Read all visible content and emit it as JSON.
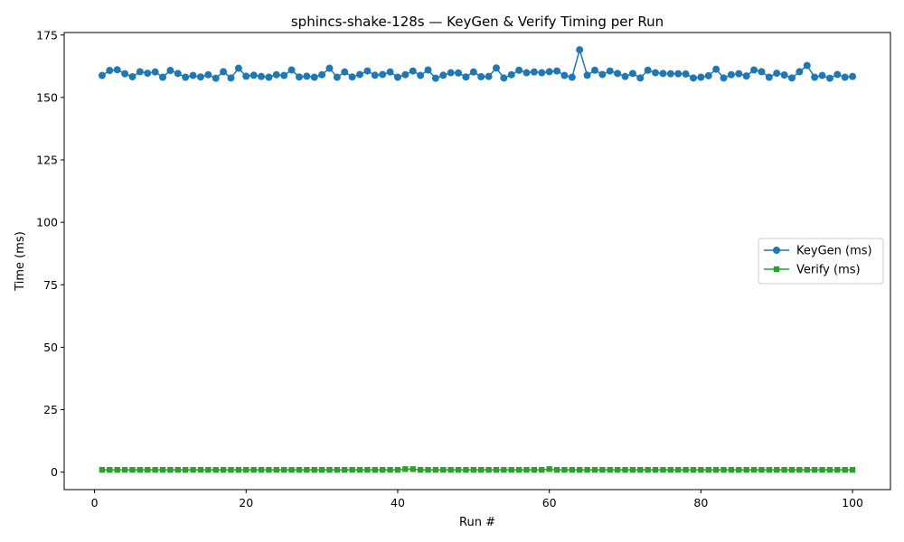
{
  "chart_data": {
    "type": "line",
    "title": "sphincs-shake-128s — KeyGen & Verify Timing per Run",
    "xlabel": "Run #",
    "ylabel": "Time (ms)",
    "xlim": [
      -4,
      105
    ],
    "ylim": [
      -7,
      176
    ],
    "xticks": [
      0,
      20,
      40,
      60,
      80,
      100
    ],
    "yticks": [
      0,
      25,
      50,
      75,
      100,
      125,
      150,
      175
    ],
    "grid": false,
    "legend_position": "center-right",
    "x": [
      1,
      2,
      3,
      4,
      5,
      6,
      7,
      8,
      9,
      10,
      11,
      12,
      13,
      14,
      15,
      16,
      17,
      18,
      19,
      20,
      21,
      22,
      23,
      24,
      25,
      26,
      27,
      28,
      29,
      30,
      31,
      32,
      33,
      34,
      35,
      36,
      37,
      38,
      39,
      40,
      41,
      42,
      43,
      44,
      45,
      46,
      47,
      48,
      49,
      50,
      51,
      52,
      53,
      54,
      55,
      56,
      57,
      58,
      59,
      60,
      61,
      62,
      63,
      64,
      65,
      66,
      67,
      68,
      69,
      70,
      71,
      72,
      73,
      74,
      75,
      76,
      77,
      78,
      79,
      80,
      81,
      82,
      83,
      84,
      85,
      86,
      87,
      88,
      89,
      90,
      91,
      92,
      93,
      94,
      95,
      96,
      97,
      98,
      99,
      100
    ],
    "series": [
      {
        "name": "KeyGen (ms)",
        "color": "#1f77b4",
        "marker": "circle",
        "values": [
          158.8,
          160.8,
          161.1,
          159.5,
          158.3,
          160.3,
          159.7,
          160.2,
          158.1,
          160.8,
          159.6,
          158.1,
          158.8,
          158.2,
          159.1,
          157.7,
          160.3,
          157.8,
          161.7,
          158.5,
          158.9,
          158.4,
          158.1,
          159.1,
          158.8,
          161.0,
          158.2,
          158.5,
          158.1,
          159.1,
          161.7,
          158.1,
          160.2,
          158.2,
          159.2,
          160.6,
          158.9,
          159.2,
          160.2,
          158.1,
          159.1,
          160.6,
          158.8,
          161.0,
          157.7,
          158.9,
          159.9,
          159.8,
          158.2,
          160.2,
          158.3,
          158.4,
          161.8,
          157.8,
          159.1,
          160.9,
          159.9,
          160.2,
          159.9,
          160.3,
          160.6,
          158.8,
          158.1,
          169.1,
          158.9,
          160.9,
          159.2,
          160.6,
          159.6,
          158.4,
          159.6,
          157.8,
          160.9,
          159.9,
          159.6,
          159.5,
          159.5,
          159.4,
          157.8,
          158.1,
          158.7,
          161.3,
          157.8,
          159.1,
          159.5,
          158.6,
          161.0,
          160.3,
          158.1,
          159.7,
          159.0,
          157.8,
          160.3,
          162.8,
          158.1,
          158.8,
          157.7,
          159.2,
          158.1,
          158.4
        ]
      },
      {
        "name": "Verify (ms)",
        "color": "#2ca02c",
        "marker": "square",
        "values": [
          0.9,
          0.9,
          0.9,
          0.9,
          0.9,
          0.9,
          0.9,
          0.9,
          0.9,
          0.9,
          0.9,
          0.9,
          0.9,
          0.9,
          0.9,
          0.9,
          0.9,
          0.9,
          0.9,
          0.9,
          0.9,
          0.9,
          0.9,
          0.9,
          0.9,
          0.9,
          0.9,
          0.9,
          0.9,
          0.9,
          0.9,
          0.9,
          0.9,
          0.9,
          0.9,
          0.9,
          0.9,
          0.9,
          0.9,
          0.9,
          1.2,
          1.2,
          0.9,
          0.9,
          0.9,
          0.9,
          0.9,
          0.9,
          0.9,
          0.9,
          0.9,
          0.9,
          0.9,
          0.9,
          0.9,
          0.9,
          0.9,
          0.9,
          0.9,
          1.2,
          0.9,
          0.9,
          0.9,
          0.9,
          0.9,
          0.9,
          0.9,
          0.9,
          0.9,
          0.9,
          0.9,
          0.9,
          0.9,
          0.9,
          0.9,
          0.9,
          0.9,
          0.9,
          0.9,
          0.9,
          0.9,
          0.9,
          0.9,
          0.9,
          0.9,
          0.9,
          0.9,
          0.9,
          0.9,
          0.9,
          0.9,
          0.9,
          0.9,
          0.9,
          0.9,
          0.9,
          0.9,
          0.9,
          0.9,
          0.9
        ]
      }
    ]
  }
}
